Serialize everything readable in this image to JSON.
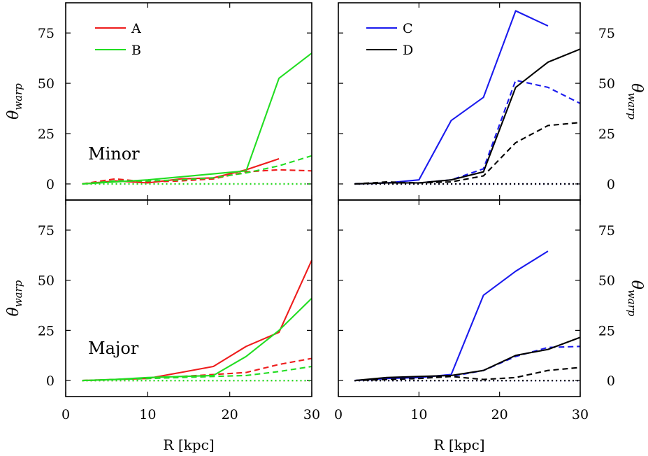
{
  "chart_data": [
    {
      "type": "line",
      "panel": "top-left",
      "annotation": "Minor",
      "ylabel_main": "θ",
      "ylabel_sub": "warp",
      "xlabel": "",
      "xlim": [
        0,
        30
      ],
      "ylim": [
        -8,
        90
      ],
      "xticks": [
        0,
        10,
        20,
        30
      ],
      "yticks": [
        0,
        25,
        50,
        75
      ],
      "show_x_ticklabels": false,
      "ylabel_side": "left",
      "legend": {
        "placement": "top-left",
        "entries": [
          {
            "label": "A",
            "color": "#ee1c1c"
          },
          {
            "label": "B",
            "color": "#22dd22"
          }
        ]
      },
      "series": [
        {
          "name": "A",
          "color": "#ee1c1c",
          "style": "solid",
          "x": [
            2,
            6,
            10,
            14,
            18,
            22,
            26
          ],
          "y": [
            0,
            1.5,
            0.5,
            2.5,
            3,
            7,
            12.5
          ]
        },
        {
          "name": "",
          "color": "#ee1c1c",
          "style": "dashed",
          "x": [
            2,
            6,
            10,
            14,
            18,
            22,
            26,
            30
          ],
          "y": [
            0,
            2.5,
            1,
            1.5,
            2.5,
            6,
            7,
            6.5
          ]
        },
        {
          "name": "",
          "color": "#ee1c1c",
          "style": "dotted",
          "x": [
            2,
            30
          ],
          "y": [
            0,
            0
          ]
        },
        {
          "name": "B",
          "color": "#22dd22",
          "style": "solid",
          "x": [
            2,
            10,
            14,
            18,
            22,
            26,
            30
          ],
          "y": [
            0,
            2,
            3.5,
            5,
            6.5,
            52.5,
            65
          ]
        },
        {
          "name": "",
          "color": "#22dd22",
          "style": "dashed",
          "x": [
            2,
            6,
            10,
            14,
            18,
            22,
            26,
            30
          ],
          "y": [
            0,
            1.5,
            1.5,
            2,
            3,
            5.5,
            9,
            14
          ]
        },
        {
          "name": "",
          "color": "#22dd22",
          "style": "dotted",
          "x": [
            2,
            30
          ],
          "y": [
            0,
            0
          ]
        }
      ]
    },
    {
      "type": "line",
      "panel": "top-right",
      "annotation": "",
      "ylabel_main": "θ",
      "ylabel_sub": "warp",
      "xlabel": "",
      "xlim": [
        0,
        30
      ],
      "ylim": [
        -8,
        90
      ],
      "xticks": [
        0,
        10,
        20,
        30
      ],
      "yticks": [
        0,
        25,
        50,
        75
      ],
      "show_x_ticklabels": false,
      "ylabel_side": "right",
      "legend": {
        "placement": "top-left",
        "entries": [
          {
            "label": "C",
            "color": "#1a1aee"
          },
          {
            "label": "D",
            "color": "#000000"
          }
        ]
      },
      "series": [
        {
          "name": "C",
          "color": "#1a1aee",
          "style": "solid",
          "x": [
            2,
            6,
            10,
            14,
            18,
            22,
            26
          ],
          "y": [
            0,
            0.5,
            2,
            31.5,
            43,
            86,
            78.5
          ]
        },
        {
          "name": "",
          "color": "#1a1aee",
          "style": "dashed",
          "x": [
            2,
            6,
            10,
            14,
            18,
            22,
            26,
            30
          ],
          "y": [
            0,
            0.5,
            0.5,
            2,
            7.5,
            51.5,
            48,
            40
          ]
        },
        {
          "name": "",
          "color": "#1a1aee",
          "style": "dotted",
          "x": [
            2,
            30
          ],
          "y": [
            0,
            0
          ]
        },
        {
          "name": "D",
          "color": "#000000",
          "style": "solid",
          "x": [
            2,
            6,
            10,
            14,
            18,
            22,
            26,
            30
          ],
          "y": [
            0,
            0.5,
            0.5,
            2,
            6,
            48,
            60.5,
            67
          ]
        },
        {
          "name": "",
          "color": "#000000",
          "style": "dashed",
          "x": [
            2,
            6,
            10,
            14,
            18,
            22,
            26,
            30
          ],
          "y": [
            0,
            1,
            0.5,
            1,
            4,
            20.5,
            29,
            30.5
          ]
        },
        {
          "name": "",
          "color": "#000000",
          "style": "dotted",
          "x": [
            2,
            30
          ],
          "y": [
            0,
            0
          ]
        }
      ]
    },
    {
      "type": "line",
      "panel": "bottom-left",
      "annotation": "Major",
      "ylabel_main": "θ",
      "ylabel_sub": "warp",
      "xlabel": "R [kpc]",
      "xlim": [
        0,
        30
      ],
      "ylim": [
        -8,
        90
      ],
      "xticks": [
        0,
        10,
        20,
        30
      ],
      "yticks": [
        0,
        25,
        50,
        75
      ],
      "show_x_ticklabels": true,
      "ylabel_side": "left",
      "series": [
        {
          "name": "A",
          "color": "#ee1c1c",
          "style": "solid",
          "x": [
            2,
            6,
            10,
            14,
            18,
            22,
            26,
            30
          ],
          "y": [
            0,
            0.5,
            1,
            4,
            7,
            17,
            24,
            60
          ]
        },
        {
          "name": "",
          "color": "#ee1c1c",
          "style": "dashed",
          "x": [
            2,
            6,
            10,
            14,
            18,
            22,
            26,
            30
          ],
          "y": [
            0,
            0.5,
            1,
            2,
            3,
            4,
            8,
            11
          ]
        },
        {
          "name": "",
          "color": "#ee1c1c",
          "style": "dotted",
          "x": [
            2,
            30
          ],
          "y": [
            0,
            0
          ]
        },
        {
          "name": "B",
          "color": "#22dd22",
          "style": "solid",
          "x": [
            2,
            6,
            10,
            14,
            18,
            22,
            26,
            30
          ],
          "y": [
            0,
            0.5,
            1.5,
            2,
            2.5,
            12,
            25,
            41
          ]
        },
        {
          "name": "",
          "color": "#22dd22",
          "style": "dashed",
          "x": [
            2,
            6,
            10,
            14,
            18,
            22,
            26,
            30
          ],
          "y": [
            0,
            0.5,
            1,
            1.5,
            2,
            2.5,
            4.5,
            7
          ]
        },
        {
          "name": "",
          "color": "#22dd22",
          "style": "dotted",
          "x": [
            2,
            30
          ],
          "y": [
            0,
            0
          ]
        }
      ]
    },
    {
      "type": "line",
      "panel": "bottom-right",
      "annotation": "",
      "ylabel_main": "θ",
      "ylabel_sub": "warp",
      "xlabel": "R [kpc]",
      "xlim": [
        0,
        30
      ],
      "ylim": [
        -8,
        90
      ],
      "xticks": [
        0,
        10,
        20,
        30
      ],
      "yticks": [
        0,
        25,
        50,
        75
      ],
      "show_x_ticklabels": true,
      "ylabel_side": "right",
      "series": [
        {
          "name": "C",
          "color": "#1a1aee",
          "style": "solid",
          "x": [
            2,
            6,
            10,
            14,
            18,
            22,
            26
          ],
          "y": [
            0,
            1,
            1.5,
            3,
            42.5,
            54.5,
            64.5
          ]
        },
        {
          "name": "",
          "color": "#1a1aee",
          "style": "dashed",
          "x": [
            2,
            6,
            10,
            14,
            18,
            22,
            26,
            30
          ],
          "y": [
            0,
            1,
            1.5,
            2,
            5,
            12,
            16.5,
            17
          ]
        },
        {
          "name": "",
          "color": "#1a1aee",
          "style": "dotted",
          "x": [
            2,
            30
          ],
          "y": [
            0,
            0
          ]
        },
        {
          "name": "D",
          "color": "#000000",
          "style": "solid",
          "x": [
            2,
            6,
            10,
            14,
            18,
            22,
            26,
            30
          ],
          "y": [
            0,
            1.5,
            2,
            2.5,
            5,
            12.5,
            15.5,
            21.5
          ]
        },
        {
          "name": "",
          "color": "#000000",
          "style": "dashed",
          "x": [
            2,
            6,
            10,
            14,
            18,
            22,
            26,
            30
          ],
          "y": [
            0,
            0.5,
            1,
            2,
            0.5,
            1.5,
            5,
            6.5
          ]
        },
        {
          "name": "",
          "color": "#000000",
          "style": "dotted",
          "x": [
            2,
            30
          ],
          "y": [
            0,
            0
          ]
        }
      ]
    }
  ]
}
